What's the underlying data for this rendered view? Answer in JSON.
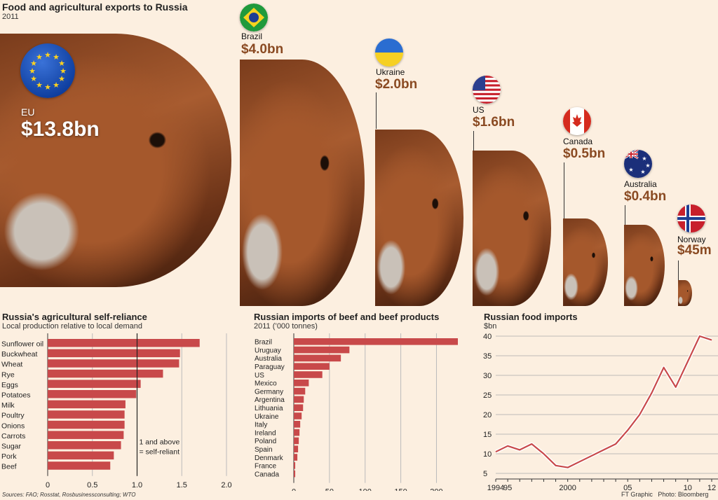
{
  "header": {
    "title": "Food and agricultural exports to Russia",
    "year": "2011"
  },
  "exporters": [
    {
      "name": "EU",
      "value": "$13.8bn",
      "amount_bn": 13.8
    },
    {
      "name": "Brazil",
      "value": "$4.0bn",
      "amount_bn": 4.0
    },
    {
      "name": "Ukraine",
      "value": "$2.0bn",
      "amount_bn": 2.0
    },
    {
      "name": "US",
      "value": "$1.6bn",
      "amount_bn": 1.6
    },
    {
      "name": "Canada",
      "value": "$0.5bn",
      "amount_bn": 0.5
    },
    {
      "name": "Australia",
      "value": "$0.4bn",
      "amount_bn": 0.4
    },
    {
      "name": "Norway",
      "value": "$45m",
      "amount_bn": 0.045
    }
  ],
  "colors": {
    "bar": "#c8494a",
    "line": "#c8494a",
    "text_brown": "#8a4a22",
    "background": "#fcefe0"
  },
  "chart_data": [
    {
      "type": "bar",
      "orientation": "horizontal",
      "title": "Russia's agricultural self-reliance",
      "subtitle": "Local production relative to local demand",
      "categories": [
        "Sunflower oil",
        "Buckwheat",
        "Wheat",
        "Rye",
        "Eggs",
        "Potatoes",
        "Milk",
        "Poultry",
        "Onions",
        "Carrots",
        "Sugar",
        "Pork",
        "Beef"
      ],
      "values": [
        1.7,
        1.48,
        1.47,
        1.29,
        1.04,
        0.99,
        0.87,
        0.86,
        0.86,
        0.85,
        0.82,
        0.74,
        0.7
      ],
      "xlim": [
        0,
        2.0
      ],
      "ticks": [
        "0",
        "0.5",
        "1.0",
        "1.5",
        "2.0"
      ],
      "reference_line": 1.0,
      "annotation": [
        "1 and above",
        "= self-reliant"
      ]
    },
    {
      "type": "bar",
      "orientation": "horizontal",
      "title": "Russian imports of beef and beef products",
      "subtitle": "2011 (’000 tonnes)",
      "categories": [
        "Brazil",
        "Uruguay",
        "Australia",
        "Paraguay",
        "US",
        "Mexico",
        "Germany",
        "Argentina",
        "Lithuania",
        "Ukraine",
        "Italy",
        "Ireland",
        "Poland",
        "Spain",
        "Denmark",
        "France",
        "Canada"
      ],
      "values": [
        230,
        78,
        66,
        50,
        40,
        21,
        16,
        14,
        13,
        11,
        9,
        8,
        7,
        6,
        5,
        2,
        2
      ],
      "xlim": [
        0,
        230
      ],
      "ticks": [
        "0",
        "50",
        "100",
        "150",
        "200"
      ]
    },
    {
      "type": "line",
      "title": "Russian food imports",
      "ylabel": "$bn",
      "x": [
        1994,
        1995,
        1996,
        1997,
        1998,
        1999,
        2000,
        2001,
        2002,
        2003,
        2004,
        2005,
        2006,
        2007,
        2008,
        2009,
        2010,
        2011,
        2012
      ],
      "y": [
        10.5,
        12,
        11,
        12.5,
        10,
        7,
        6.5,
        8,
        9.5,
        11,
        12.5,
        16,
        20,
        25.5,
        32,
        27,
        33.5,
        40,
        39
      ],
      "ylim": [
        5,
        40
      ],
      "yticks": [
        "5",
        "10",
        "15",
        "20",
        "25",
        "30",
        "35",
        "40"
      ],
      "xticks": [
        "1994",
        "95",
        "2000",
        "05",
        "10",
        "12"
      ]
    }
  ],
  "footer": {
    "sources": "Sources: FAO; Rosstat, Rosbusinessconsulting; WTO",
    "credit": "FT Graphic   Photo: Bloomberg"
  }
}
